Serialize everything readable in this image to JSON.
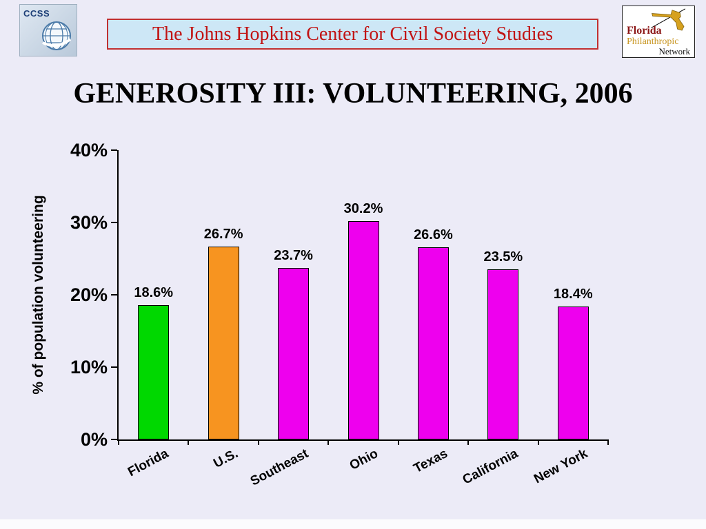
{
  "header": {
    "ccss_logo": {
      "text": "CCSS"
    },
    "banner_title": "The Johns Hopkins Center for Civil Society Studies",
    "fpn_logo": {
      "line1": "Florida",
      "line2": "Philanthropic",
      "line3": "Network"
    }
  },
  "slide_title": "GENEROSITY III: VOLUNTEERING, 2006",
  "chart_data": {
    "type": "bar",
    "title": "GENEROSITY III: VOLUNTEERING, 2006",
    "categories": [
      "Florida",
      "U.S.",
      "Southeast",
      "Ohio",
      "Texas",
      "California",
      "New York"
    ],
    "values": [
      18.6,
      26.7,
      23.7,
      30.2,
      26.6,
      23.5,
      18.4
    ],
    "value_labels": [
      "18.6%",
      "26.7%",
      "23.7%",
      "30.2%",
      "26.6%",
      "23.5%",
      "18.4%"
    ],
    "bar_colors": [
      "#00d800",
      "#f79420",
      "#ee00ee",
      "#ee00ee",
      "#ee00ee",
      "#ee00ee",
      "#ee00ee"
    ],
    "xlabel": "",
    "ylabel": "% of population volunteering",
    "ylim": [
      0,
      40
    ],
    "yticks": [
      "0%",
      "10%",
      "20%",
      "30%",
      "40%"
    ],
    "ytick_values": [
      0,
      10,
      20,
      30,
      40
    ],
    "grid": false,
    "legend": "none"
  },
  "colors": {
    "slide_background": "#ecebf7",
    "banner_background": "#cde7f6",
    "banner_border": "#c03030",
    "banner_text": "#c11414",
    "bar_outline": "#000000",
    "axis": "#000000"
  }
}
